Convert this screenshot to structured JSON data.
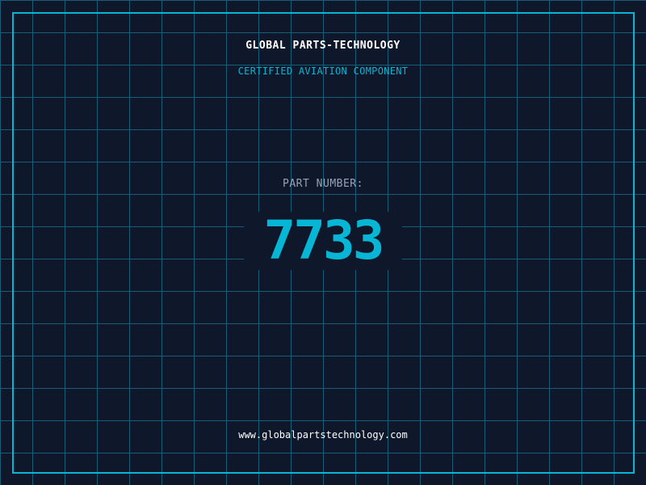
{
  "header": {
    "company": "GLOBAL PARTS-TECHNOLOGY",
    "subtitle": "CERTIFIED AVIATION COMPONENT"
  },
  "part": {
    "label": "PART NUMBER:",
    "number": "7733"
  },
  "footer": {
    "url": "www.globalpartstechnology.com"
  },
  "colors": {
    "background": "#0f172a",
    "accent": "#06b6d4",
    "grid": "#155e75"
  }
}
